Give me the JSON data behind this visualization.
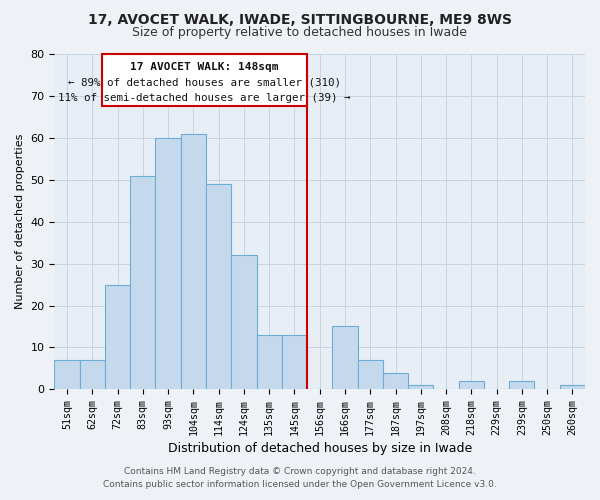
{
  "title": "17, AVOCET WALK, IWADE, SITTINGBOURNE, ME9 8WS",
  "subtitle": "Size of property relative to detached houses in Iwade",
  "xlabel": "Distribution of detached houses by size in Iwade",
  "ylabel": "Number of detached properties",
  "bar_labels": [
    "51sqm",
    "62sqm",
    "72sqm",
    "83sqm",
    "93sqm",
    "104sqm",
    "114sqm",
    "124sqm",
    "135sqm",
    "145sqm",
    "156sqm",
    "166sqm",
    "177sqm",
    "187sqm",
    "197sqm",
    "208sqm",
    "218sqm",
    "229sqm",
    "239sqm",
    "250sqm",
    "260sqm"
  ],
  "bar_values": [
    7,
    7,
    25,
    51,
    60,
    61,
    49,
    32,
    13,
    13,
    0,
    15,
    7,
    4,
    1,
    0,
    2,
    0,
    2,
    0,
    1
  ],
  "bar_color": "#c5d9ed",
  "bar_edge_color": "#6aaed6",
  "vline_x_idx": 9.5,
  "vline_color": "#cc0000",
  "annotation_title": "17 AVOCET WALK: 148sqm",
  "annotation_line1": "← 89% of detached houses are smaller (310)",
  "annotation_line2": "11% of semi-detached houses are larger (39) →",
  "annotation_box_color": "#cc0000",
  "ylim": [
    0,
    80
  ],
  "yticks": [
    0,
    10,
    20,
    30,
    40,
    50,
    60,
    70,
    80
  ],
  "footer1": "Contains HM Land Registry data © Crown copyright and database right 2024.",
  "footer2": "Contains public sector information licensed under the Open Government Licence v3.0.",
  "bg_color": "#eef2f7",
  "plot_bg_color": "#e8eef5",
  "grid_color": "#c8d4e0",
  "title_fontsize": 10,
  "subtitle_fontsize": 9
}
